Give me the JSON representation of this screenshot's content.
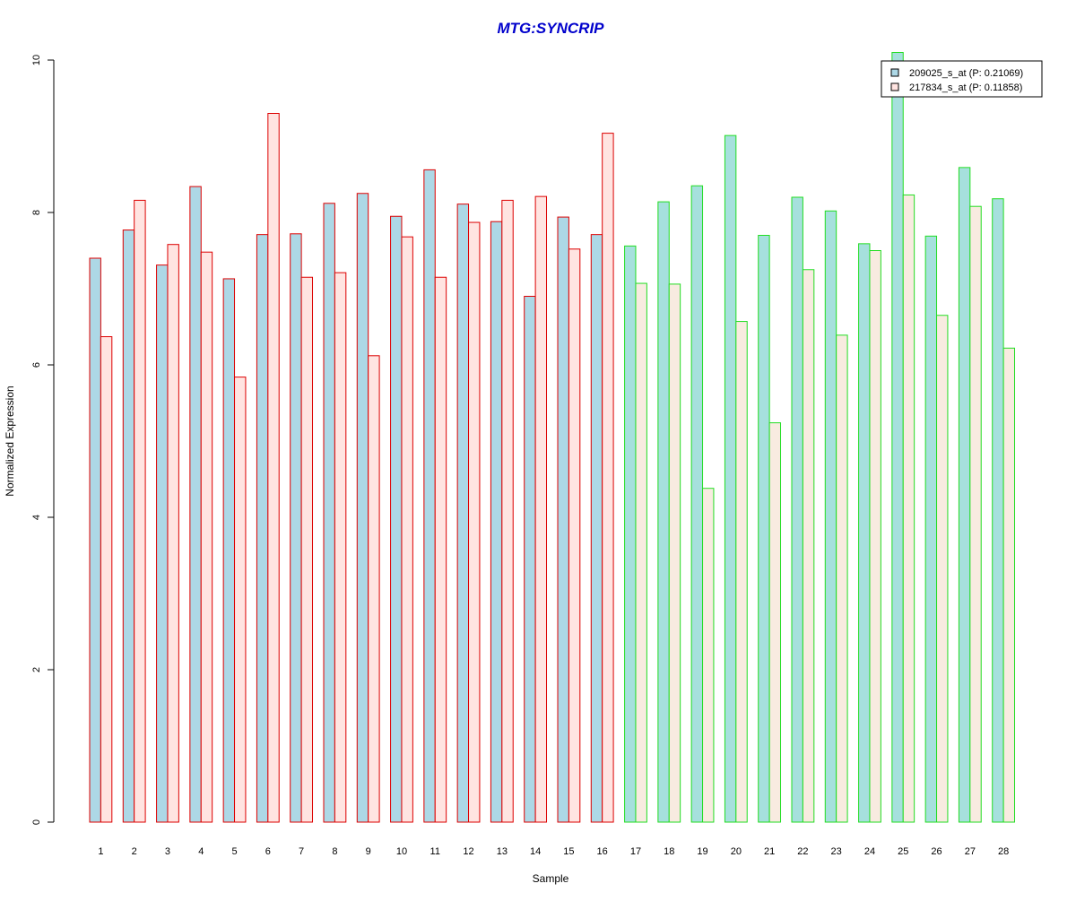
{
  "chart_data": {
    "type": "bar",
    "title": "MTG:SYNCRIP",
    "xlabel": "Sample",
    "ylabel": "Normalized Expression",
    "ylim": [
      0,
      10
    ],
    "yticks": [
      0,
      2,
      4,
      6,
      8,
      10
    ],
    "categories": [
      "1",
      "2",
      "3",
      "4",
      "5",
      "6",
      "7",
      "8",
      "9",
      "10",
      "11",
      "12",
      "13",
      "14",
      "15",
      "16",
      "17",
      "18",
      "19",
      "20",
      "21",
      "22",
      "23",
      "24",
      "25",
      "26",
      "27",
      "28"
    ],
    "group_outline": {
      "group_1_samples": "1-16",
      "group_1_color": "#dd0000",
      "group_2_samples": "17-28",
      "group_2_color": "#22dd22"
    },
    "series": [
      {
        "name": "209025_s_at (P: 0.21069)",
        "fill_group_1": "#add8e6",
        "fill_group_2": "#a6e0dd",
        "values": [
          7.4,
          7.77,
          7.31,
          8.34,
          7.13,
          7.71,
          7.72,
          8.12,
          8.25,
          7.95,
          8.56,
          8.11,
          7.88,
          6.9,
          7.94,
          7.71,
          7.56,
          8.14,
          8.35,
          9.01,
          7.7,
          8.2,
          8.02,
          7.59,
          10.1,
          7.69,
          8.59,
          8.18
        ]
      },
      {
        "name": "217834_s_at (P: 0.11858)",
        "fill_group_1": "#ffe4e1",
        "fill_group_2": "#f8ebe0",
        "values": [
          6.37,
          8.16,
          7.58,
          7.48,
          5.84,
          9.3,
          7.15,
          7.21,
          6.12,
          7.68,
          7.15,
          7.87,
          8.16,
          8.21,
          7.52,
          9.04,
          7.07,
          7.06,
          4.38,
          6.57,
          5.24,
          7.25,
          6.39,
          7.5,
          8.23,
          6.65,
          8.08,
          6.22
        ]
      }
    ],
    "legend_position": "top-right",
    "title_color": "#0000cc",
    "grid": false
  }
}
